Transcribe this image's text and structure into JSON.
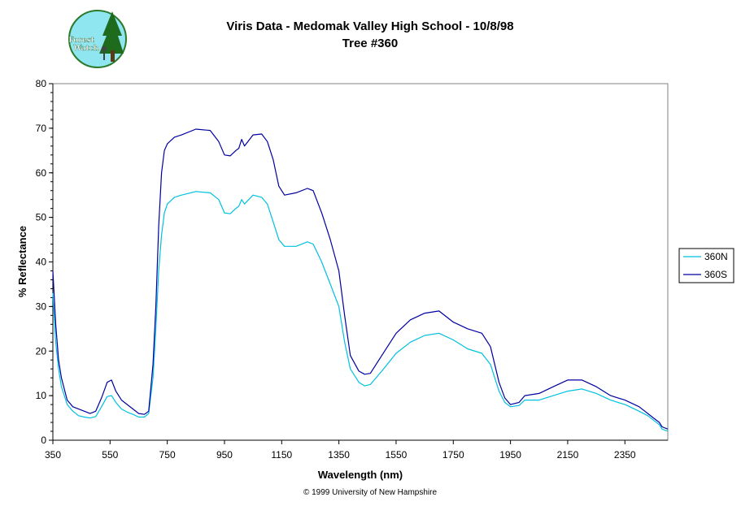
{
  "logo": {
    "name": "forest-watch-logo",
    "text_line1": "Forest",
    "text_line2": "Watch"
  },
  "chart_data": {
    "type": "line",
    "title": "Viris Data - Medomak Valley High School - 10/8/98",
    "subtitle": "Tree #360",
    "xlabel": "Wavelength (nm)",
    "ylabel": "% Reflectance",
    "xlim": [
      350,
      2500
    ],
    "ylim": [
      0,
      80
    ],
    "x_ticks": [
      "350",
      "550",
      "750",
      "950",
      "1150",
      "1350",
      "1550",
      "1750",
      "1950",
      "2150",
      "2350"
    ],
    "y_ticks": [
      "0",
      "10",
      "20",
      "30",
      "40",
      "50",
      "60",
      "70",
      "80"
    ],
    "legend_position": "right",
    "grid": false,
    "series": [
      {
        "name": "360N",
        "color": "#00C0E0",
        "points": [
          [
            350,
            33
          ],
          [
            360,
            22
          ],
          [
            370,
            16
          ],
          [
            380,
            12
          ],
          [
            400,
            8
          ],
          [
            420,
            6.5
          ],
          [
            440,
            5.5
          ],
          [
            460,
            5.2
          ],
          [
            480,
            5
          ],
          [
            500,
            5.3
          ],
          [
            520,
            7.5
          ],
          [
            540,
            9.8
          ],
          [
            555,
            10
          ],
          [
            570,
            8.5
          ],
          [
            590,
            7
          ],
          [
            610,
            6.3
          ],
          [
            630,
            5.8
          ],
          [
            650,
            5.2
          ],
          [
            670,
            5.2
          ],
          [
            685,
            6
          ],
          [
            700,
            14
          ],
          [
            710,
            25
          ],
          [
            720,
            38
          ],
          [
            730,
            46
          ],
          [
            740,
            51
          ],
          [
            750,
            53
          ],
          [
            775,
            54.5
          ],
          [
            800,
            55
          ],
          [
            850,
            55.8
          ],
          [
            900,
            55.5
          ],
          [
            930,
            54
          ],
          [
            950,
            51
          ],
          [
            970,
            50.8
          ],
          [
            990,
            52
          ],
          [
            1000,
            52.5
          ],
          [
            1010,
            54
          ],
          [
            1020,
            53
          ],
          [
            1050,
            55
          ],
          [
            1080,
            54.5
          ],
          [
            1100,
            53
          ],
          [
            1120,
            49
          ],
          [
            1140,
            45
          ],
          [
            1160,
            43.5
          ],
          [
            1200,
            43.5
          ],
          [
            1240,
            44.5
          ],
          [
            1260,
            44
          ],
          [
            1290,
            40
          ],
          [
            1320,
            35
          ],
          [
            1350,
            30
          ],
          [
            1370,
            22
          ],
          [
            1390,
            16
          ],
          [
            1420,
            13
          ],
          [
            1440,
            12.2
          ],
          [
            1460,
            12.5
          ],
          [
            1500,
            15.5
          ],
          [
            1550,
            19.5
          ],
          [
            1600,
            22
          ],
          [
            1650,
            23.5
          ],
          [
            1700,
            24
          ],
          [
            1750,
            22.5
          ],
          [
            1800,
            20.5
          ],
          [
            1850,
            19.5
          ],
          [
            1880,
            17
          ],
          [
            1910,
            11
          ],
          [
            1930,
            8.5
          ],
          [
            1950,
            7.5
          ],
          [
            1980,
            7.8
          ],
          [
            2000,
            9
          ],
          [
            2050,
            9
          ],
          [
            2100,
            10
          ],
          [
            2150,
            11
          ],
          [
            2200,
            11.5
          ],
          [
            2250,
            10.5
          ],
          [
            2300,
            9
          ],
          [
            2350,
            8
          ],
          [
            2400,
            6.5
          ],
          [
            2430,
            5.5
          ],
          [
            2450,
            4.5
          ],
          [
            2470,
            3.5
          ],
          [
            2480,
            2.5
          ],
          [
            2500,
            2
          ]
        ]
      },
      {
        "name": "360S",
        "color": "#0000A0",
        "points": [
          [
            350,
            38
          ],
          [
            360,
            26
          ],
          [
            370,
            18
          ],
          [
            380,
            14
          ],
          [
            400,
            9
          ],
          [
            420,
            7.5
          ],
          [
            440,
            7
          ],
          [
            460,
            6.5
          ],
          [
            480,
            6
          ],
          [
            500,
            6.5
          ],
          [
            520,
            9.5
          ],
          [
            540,
            13
          ],
          [
            555,
            13.5
          ],
          [
            570,
            11
          ],
          [
            590,
            9
          ],
          [
            610,
            8
          ],
          [
            630,
            7
          ],
          [
            650,
            6
          ],
          [
            670,
            5.8
          ],
          [
            685,
            6.5
          ],
          [
            700,
            17
          ],
          [
            710,
            30
          ],
          [
            720,
            48
          ],
          [
            730,
            60
          ],
          [
            740,
            65
          ],
          [
            750,
            66.5
          ],
          [
            775,
            68
          ],
          [
            800,
            68.5
          ],
          [
            850,
            69.8
          ],
          [
            900,
            69.5
          ],
          [
            930,
            67
          ],
          [
            950,
            64
          ],
          [
            970,
            63.8
          ],
          [
            990,
            65
          ],
          [
            1000,
            65.5
          ],
          [
            1010,
            67.5
          ],
          [
            1020,
            66
          ],
          [
            1050,
            68.5
          ],
          [
            1080,
            68.7
          ],
          [
            1100,
            67
          ],
          [
            1120,
            63
          ],
          [
            1140,
            57
          ],
          [
            1160,
            55
          ],
          [
            1200,
            55.5
          ],
          [
            1240,
            56.5
          ],
          [
            1260,
            56
          ],
          [
            1290,
            51
          ],
          [
            1320,
            45
          ],
          [
            1350,
            38
          ],
          [
            1370,
            28
          ],
          [
            1390,
            19
          ],
          [
            1420,
            15.5
          ],
          [
            1440,
            14.8
          ],
          [
            1460,
            15
          ],
          [
            1500,
            19
          ],
          [
            1550,
            24
          ],
          [
            1600,
            27
          ],
          [
            1650,
            28.5
          ],
          [
            1700,
            29
          ],
          [
            1750,
            26.5
          ],
          [
            1800,
            25
          ],
          [
            1850,
            24
          ],
          [
            1880,
            21
          ],
          [
            1910,
            13
          ],
          [
            1930,
            9.5
          ],
          [
            1950,
            8
          ],
          [
            1980,
            8.5
          ],
          [
            2000,
            10
          ],
          [
            2050,
            10.5
          ],
          [
            2100,
            12
          ],
          [
            2150,
            13.5
          ],
          [
            2200,
            13.5
          ],
          [
            2250,
            12
          ],
          [
            2300,
            10
          ],
          [
            2350,
            9
          ],
          [
            2400,
            7.5
          ],
          [
            2430,
            6
          ],
          [
            2450,
            5
          ],
          [
            2470,
            4
          ],
          [
            2480,
            3
          ],
          [
            2500,
            2.5
          ]
        ]
      }
    ],
    "footer": "© 1999 University of New Hampshire"
  }
}
